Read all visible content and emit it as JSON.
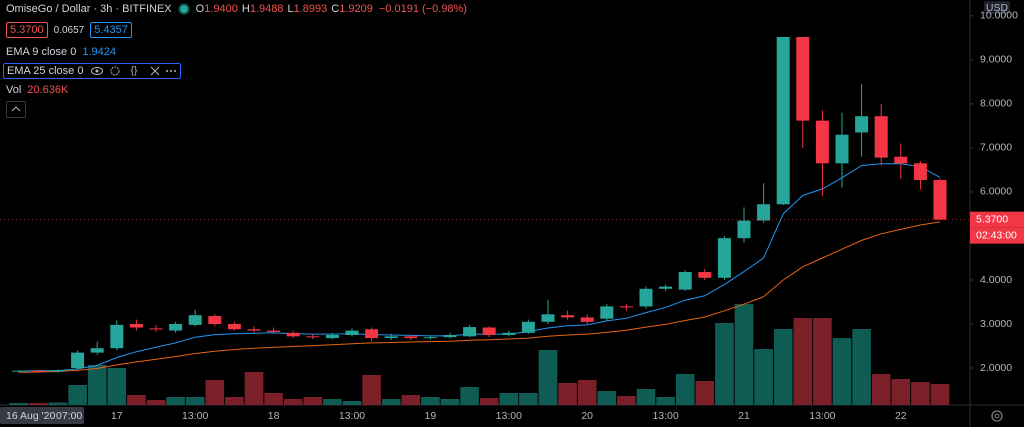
{
  "header": {
    "symbol": "OmiseGo / Dollar · 3h · BITFINEX",
    "ohlc": [
      {
        "key": "O",
        "value": "1.9400"
      },
      {
        "key": "H",
        "value": "1.9488"
      },
      {
        "key": "L",
        "value": "1.8993"
      },
      {
        "key": "C",
        "value": "1.9209"
      }
    ],
    "change": "−0.0191 (−0.98%)",
    "bid": "5.3700",
    "spread": "0.0657",
    "ask": "5.4357",
    "volume_name": "Vol",
    "volume_label": "20.636K",
    "currency": "USD",
    "countdown": "02:43:00",
    "crosshair_date": "16 Aug '20",
    "crosshair_time": "07:00"
  },
  "chart_data": {
    "type": "candlestick",
    "categories": [
      null,
      null,
      null,
      null,
      null,
      "17",
      null,
      null,
      null,
      "13:00",
      null,
      null,
      null,
      "18",
      null,
      null,
      null,
      "13:00",
      null,
      null,
      null,
      "19",
      null,
      null,
      null,
      "13:00",
      null,
      null,
      null,
      "20",
      null,
      null,
      null,
      "13:00",
      null,
      null,
      null,
      "21",
      null,
      null,
      null,
      "13:00",
      null,
      null,
      null,
      "22",
      null,
      null
    ],
    "open": [
      1.92,
      1.94,
      1.92,
      2.0,
      2.35,
      2.45,
      3.0,
      2.9,
      2.85,
      2.98,
      3.18,
      3.0,
      2.88,
      2.85,
      2.8,
      2.72,
      2.68,
      2.75,
      2.88,
      2.68,
      2.72,
      2.68,
      2.7,
      2.72,
      2.92,
      2.75,
      2.8,
      3.05,
      3.2,
      3.15,
      3.12,
      3.4,
      3.4,
      3.8,
      3.78,
      4.18,
      4.05,
      4.95,
      5.35,
      5.72,
      9.52,
      7.62,
      6.65,
      7.35,
      7.72,
      6.8,
      6.65,
      6.27
    ],
    "high": [
      1.95,
      1.9488,
      1.97,
      2.4,
      2.6,
      3.08,
      3.1,
      2.98,
      3.05,
      3.32,
      3.22,
      3.05,
      2.95,
      2.92,
      2.85,
      2.78,
      2.8,
      2.9,
      2.92,
      2.78,
      2.76,
      2.74,
      2.8,
      2.98,
      2.95,
      2.85,
      3.1,
      3.55,
      3.3,
      3.22,
      3.45,
      3.45,
      3.85,
      3.9,
      4.22,
      4.25,
      5.0,
      5.65,
      6.2,
      9.52,
      9.52,
      7.85,
      7.8,
      8.45,
      8.0,
      7.1,
      6.7,
      6.3
    ],
    "low": [
      1.9,
      1.8993,
      1.9,
      1.95,
      2.3,
      2.4,
      2.85,
      2.82,
      2.8,
      2.95,
      2.95,
      2.85,
      2.8,
      2.78,
      2.68,
      2.66,
      2.65,
      2.72,
      2.62,
      2.64,
      2.64,
      2.65,
      2.68,
      2.7,
      2.7,
      2.72,
      2.78,
      3.0,
      3.1,
      3.0,
      3.08,
      3.3,
      3.35,
      3.75,
      3.75,
      4.0,
      4.0,
      4.85,
      5.3,
      5.7,
      7.0,
      5.9,
      6.1,
      6.8,
      6.6,
      6.3,
      6.05,
      5.37
    ],
    "close": [
      1.94,
      1.9209,
      1.95,
      2.35,
      2.45,
      2.98,
      2.92,
      2.88,
      3.0,
      3.2,
      3.0,
      2.88,
      2.85,
      2.82,
      2.72,
      2.7,
      2.75,
      2.85,
      2.68,
      2.72,
      2.68,
      2.7,
      2.75,
      2.93,
      2.75,
      2.8,
      3.05,
      3.22,
      3.15,
      3.05,
      3.4,
      3.38,
      3.8,
      3.85,
      4.18,
      4.05,
      4.95,
      5.35,
      5.72,
      9.52,
      7.62,
      6.65,
      7.3,
      7.72,
      6.78,
      6.65,
      6.27,
      5.37
    ],
    "volume": [
      20000,
      20636,
      25000,
      200000,
      400000,
      370000,
      100000,
      50000,
      80000,
      80000,
      250000,
      80000,
      330000,
      120000,
      60000,
      80000,
      60000,
      40000,
      300000,
      60000,
      100000,
      80000,
      60000,
      180000,
      70000,
      120000,
      120000,
      550000,
      220000,
      250000,
      140000,
      90000,
      160000,
      80000,
      310000,
      240000,
      820000,
      1010000,
      560000,
      760000,
      870000,
      870000,
      670000,
      760000,
      310000,
      260000,
      230000,
      210000
    ],
    "volume_lim": [
      0,
      1200000
    ],
    "up_color": "#26a69a",
    "down_color": "#f23645",
    "volume_up_color": "#0f5c55",
    "volume_down_color": "#7b2028",
    "series": [
      {
        "name": "EMA 9 close 0",
        "color": "#2196f3",
        "legend_value": "1.9424",
        "values": [
          1.93,
          1.9424,
          1.94,
          1.98,
          2.06,
          2.24,
          2.37,
          2.47,
          2.57,
          2.7,
          2.76,
          2.78,
          2.79,
          2.8,
          2.78,
          2.77,
          2.77,
          2.78,
          2.76,
          2.75,
          2.74,
          2.73,
          2.73,
          2.77,
          2.77,
          2.77,
          2.83,
          2.91,
          2.96,
          2.98,
          3.07,
          3.13,
          3.26,
          3.38,
          3.54,
          3.64,
          3.9,
          4.19,
          4.5,
          5.5,
          5.92,
          6.07,
          6.32,
          6.6,
          6.64,
          6.64,
          6.57,
          6.33
        ]
      },
      {
        "name": "EMA 25 close 0",
        "color": "#e8650f",
        "values": [
          1.9,
          1.91,
          1.92,
          1.95,
          1.99,
          2.07,
          2.14,
          2.2,
          2.26,
          2.33,
          2.38,
          2.42,
          2.45,
          2.47,
          2.49,
          2.51,
          2.53,
          2.55,
          2.57,
          2.58,
          2.59,
          2.6,
          2.61,
          2.63,
          2.64,
          2.66,
          2.68,
          2.72,
          2.75,
          2.77,
          2.81,
          2.86,
          2.93,
          2.99,
          3.08,
          3.16,
          3.3,
          3.45,
          3.62,
          4.0,
          4.3,
          4.5,
          4.7,
          4.9,
          5.05,
          5.15,
          5.25,
          5.32
        ]
      }
    ],
    "last_price": {
      "value": 5.37,
      "label": "5.3700"
    },
    "ylim": [
      1.16,
      10.36
    ],
    "yticks": [
      {
        "value": 2,
        "label": "2.0000"
      },
      {
        "value": 3,
        "label": "3.0000"
      },
      {
        "value": 4,
        "label": "4.0000"
      },
      {
        "value": 5,
        "label": "5.0000"
      },
      {
        "value": 6,
        "label": "6.0000"
      },
      {
        "value": 7,
        "label": "7.0000"
      },
      {
        "value": 8,
        "label": "8.0000"
      },
      {
        "value": 9,
        "label": "9.0000"
      },
      {
        "value": 10,
        "label": "10.0000"
      }
    ],
    "grid": false
  }
}
